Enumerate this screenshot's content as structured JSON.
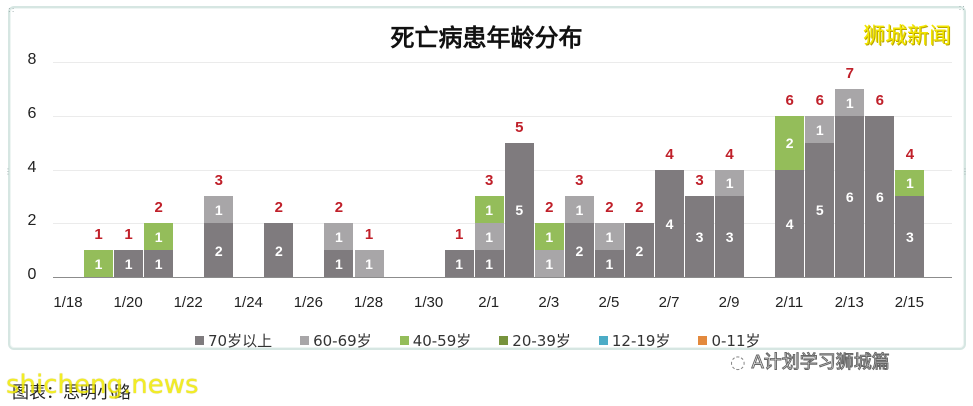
{
  "brand": "狮城新闻",
  "footer": {
    "left_text": "图表：思明小路",
    "watermark": "shicheng.news",
    "right_text": "A计划学习狮城篇"
  },
  "colors": {
    "70+": "#7f7b7e",
    "60-69": "#a8a6a8",
    "40-59": "#94bd5a",
    "20-39": "#77933c",
    "12-19": "#4bacc6",
    "0-11": "#e3893d",
    "total_label": "#c0202a"
  },
  "chart_data": {
    "type": "bar",
    "stacked": true,
    "title": "死亡病患年龄分布",
    "xlabel": "",
    "ylabel": "",
    "ylim": [
      0,
      8
    ],
    "yticks": [
      0,
      2,
      4,
      6,
      8
    ],
    "grid": true,
    "legend_position": "bottom",
    "xtick_labels": [
      "1/18",
      "1/20",
      "1/22",
      "1/24",
      "1/26",
      "1/28",
      "1/30",
      "2/1",
      "2/3",
      "2/5",
      "2/7",
      "2/9",
      "2/11",
      "2/13",
      "2/15"
    ],
    "categories": [
      "1/18",
      "1/19",
      "1/20",
      "1/21",
      "1/22",
      "1/23",
      "1/24",
      "1/25",
      "1/26",
      "1/27",
      "1/28",
      "1/29",
      "1/30",
      "1/31",
      "2/1",
      "2/2",
      "2/3",
      "2/4",
      "2/5",
      "2/6",
      "2/7",
      "2/8",
      "2/9",
      "2/10",
      "2/11",
      "2/12",
      "2/13",
      "2/14",
      "2/15"
    ],
    "series": [
      {
        "name": "70岁以上",
        "key": "70+",
        "values": [
          0,
          0,
          1,
          1,
          0,
          2,
          0,
          2,
          0,
          1,
          0,
          0,
          0,
          1,
          1,
          5,
          0,
          2,
          1,
          2,
          4,
          3,
          3,
          0,
          4,
          5,
          6,
          6,
          3
        ]
      },
      {
        "name": "60-69岁",
        "key": "60-69",
        "values": [
          0,
          0,
          0,
          0,
          0,
          1,
          0,
          0,
          0,
          1,
          1,
          0,
          0,
          0,
          1,
          0,
          1,
          1,
          1,
          0,
          0,
          0,
          1,
          0,
          0,
          1,
          1,
          0,
          0
        ]
      },
      {
        "name": "40-59岁",
        "key": "40-59",
        "values": [
          0,
          1,
          0,
          1,
          0,
          0,
          0,
          0,
          0,
          0,
          0,
          0,
          0,
          0,
          1,
          0,
          1,
          0,
          0,
          0,
          0,
          0,
          0,
          0,
          2,
          0,
          0,
          0,
          1
        ]
      },
      {
        "name": "20-39岁",
        "key": "20-39",
        "values": [
          0,
          0,
          0,
          0,
          0,
          0,
          0,
          0,
          0,
          0,
          0,
          0,
          0,
          0,
          0,
          0,
          0,
          0,
          0,
          0,
          0,
          0,
          0,
          0,
          0,
          0,
          0,
          0,
          0
        ]
      },
      {
        "name": "12-19岁",
        "key": "12-19",
        "values": [
          0,
          0,
          0,
          0,
          0,
          0,
          0,
          0,
          0,
          0,
          0,
          0,
          0,
          0,
          0,
          0,
          0,
          0,
          0,
          0,
          0,
          0,
          0,
          0,
          0,
          0,
          0,
          0,
          0
        ]
      },
      {
        "name": "0-11岁",
        "key": "0-11",
        "values": [
          0,
          0,
          0,
          0,
          0,
          0,
          0,
          0,
          0,
          0,
          0,
          0,
          0,
          0,
          0,
          0,
          0,
          0,
          0,
          0,
          0,
          0,
          0,
          0,
          0,
          0,
          0,
          0,
          0
        ]
      }
    ],
    "totals": [
      0,
      1,
      1,
      2,
      0,
      3,
      0,
      2,
      0,
      2,
      1,
      0,
      0,
      1,
      3,
      5,
      2,
      3,
      2,
      2,
      4,
      3,
      4,
      0,
      6,
      6,
      7,
      6,
      4
    ]
  }
}
